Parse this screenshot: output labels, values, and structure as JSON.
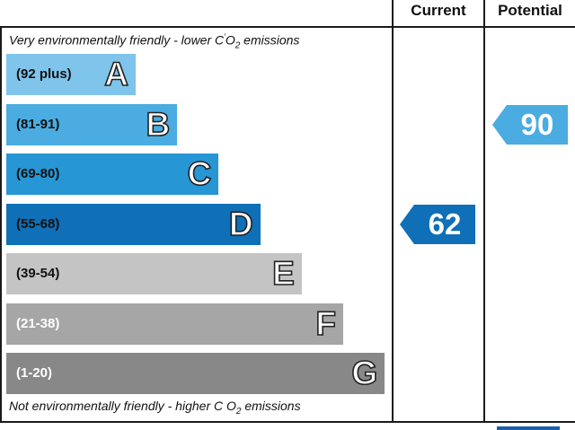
{
  "chart_data": {
    "type": "bar",
    "headers": {
      "current": "Current",
      "potential": "Potential"
    },
    "top_note": {
      "text": "Very environmentally friendly - lower C",
      "sup": "'",
      "sub_prefix": "O",
      "sub": "2",
      "suffix": " emissions"
    },
    "bottom_note": {
      "text": "Not environmentally friendly - higher C O",
      "sub": "2",
      "suffix": " emissions"
    },
    "bands": [
      {
        "range": "(92 plus)",
        "letter": "A",
        "color": "#7fc4ea",
        "text_color": "#111111",
        "min": 92,
        "max": 100
      },
      {
        "range": "(81-91)",
        "letter": "B",
        "color": "#4aace0",
        "text_color": "#111111",
        "min": 81,
        "max": 91
      },
      {
        "range": "(69-80)",
        "letter": "C",
        "color": "#2696d5",
        "text_color": "#111111",
        "min": 69,
        "max": 80
      },
      {
        "range": "(55-68)",
        "letter": "D",
        "color": "#0f6fb7",
        "text_color": "#111111",
        "min": 55,
        "max": 68
      },
      {
        "range": "(39-54)",
        "letter": "E",
        "color": "#c4c4c4",
        "text_color": "#111111",
        "min": 39,
        "max": 54
      },
      {
        "range": "(21-38)",
        "letter": "F",
        "color": "#a6a6a6",
        "text_color": "#ffffff",
        "min": 21,
        "max": 38
      },
      {
        "range": "(1-20)",
        "letter": "G",
        "color": "#888888",
        "text_color": "#ffffff",
        "min": 1,
        "max": 20
      }
    ],
    "current": {
      "value": 62,
      "band": "D",
      "color": "#0f6fb7"
    },
    "potential": {
      "value": 90,
      "band": "B",
      "color": "#4aace0"
    }
  }
}
